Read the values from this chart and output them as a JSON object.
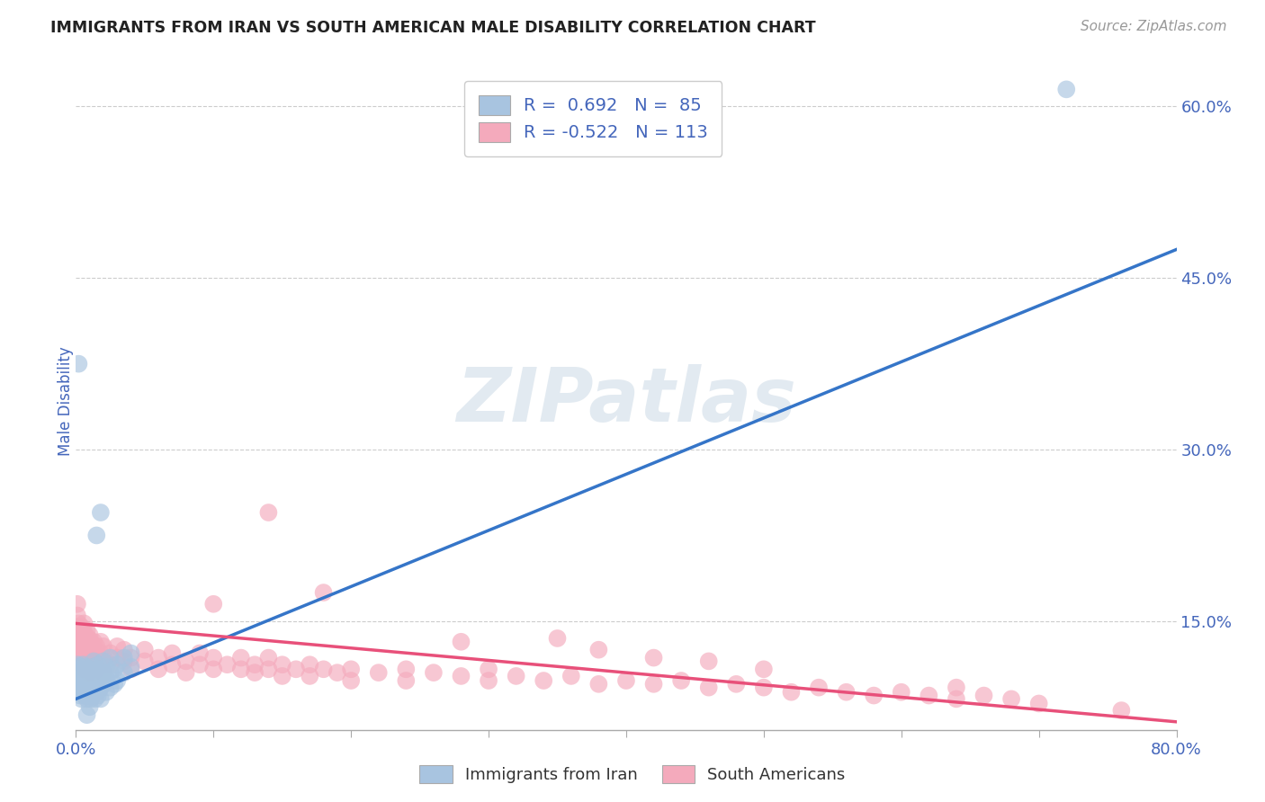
{
  "title": "IMMIGRANTS FROM IRAN VS SOUTH AMERICAN MALE DISABILITY CORRELATION CHART",
  "source": "Source: ZipAtlas.com",
  "ylabel": "Male Disability",
  "x_min": 0.0,
  "x_max": 0.8,
  "y_min": 0.055,
  "y_max": 0.63,
  "y_ticks_right": [
    0.15,
    0.3,
    0.45,
    0.6
  ],
  "y_tick_labels_right": [
    "15.0%",
    "30.0%",
    "45.0%",
    "60.0%"
  ],
  "blue_R": 0.692,
  "blue_N": 85,
  "pink_R": -0.522,
  "pink_N": 113,
  "blue_color": "#a8c4e0",
  "blue_line_color": "#3575c8",
  "pink_color": "#f4aabc",
  "pink_line_color": "#e8507a",
  "legend_label_blue": "Immigrants from Iran",
  "legend_label_pink": "South Americans",
  "watermark": "ZIPatlas",
  "background_color": "#ffffff",
  "title_color": "#222222",
  "axis_label_color": "#4466bb",
  "grid_color": "#cccccc",
  "blue_line_x0": 0.0,
  "blue_line_y0": 0.082,
  "blue_line_x1": 0.8,
  "blue_line_y1": 0.475,
  "pink_line_x0": 0.0,
  "pink_line_y0": 0.148,
  "pink_line_x1": 0.8,
  "pink_line_y1": 0.062,
  "blue_scatter": [
    [
      0.001,
      0.095
    ],
    [
      0.001,
      0.105
    ],
    [
      0.001,
      0.112
    ],
    [
      0.001,
      0.098
    ],
    [
      0.002,
      0.088
    ],
    [
      0.002,
      0.102
    ],
    [
      0.002,
      0.092
    ],
    [
      0.002,
      0.108
    ],
    [
      0.003,
      0.095
    ],
    [
      0.003,
      0.085
    ],
    [
      0.003,
      0.1
    ],
    [
      0.003,
      0.11
    ],
    [
      0.004,
      0.09
    ],
    [
      0.004,
      0.098
    ],
    [
      0.004,
      0.105
    ],
    [
      0.004,
      0.082
    ],
    [
      0.005,
      0.095
    ],
    [
      0.005,
      0.088
    ],
    [
      0.005,
      0.102
    ],
    [
      0.005,
      0.112
    ],
    [
      0.006,
      0.092
    ],
    [
      0.006,
      0.098
    ],
    [
      0.006,
      0.105
    ],
    [
      0.006,
      0.085
    ],
    [
      0.007,
      0.088
    ],
    [
      0.007,
      0.095
    ],
    [
      0.007,
      0.102
    ],
    [
      0.007,
      0.11
    ],
    [
      0.008,
      0.09
    ],
    [
      0.008,
      0.082
    ],
    [
      0.008,
      0.098
    ],
    [
      0.008,
      0.105
    ],
    [
      0.009,
      0.092
    ],
    [
      0.009,
      0.1
    ],
    [
      0.009,
      0.085
    ],
    [
      0.009,
      0.108
    ],
    [
      0.01,
      0.095
    ],
    [
      0.01,
      0.088
    ],
    [
      0.01,
      0.102
    ],
    [
      0.01,
      0.075
    ],
    [
      0.011,
      0.09
    ],
    [
      0.011,
      0.098
    ],
    [
      0.011,
      0.105
    ],
    [
      0.011,
      0.082
    ],
    [
      0.012,
      0.092
    ],
    [
      0.012,
      0.1
    ],
    [
      0.012,
      0.085
    ],
    [
      0.012,
      0.11
    ],
    [
      0.013,
      0.095
    ],
    [
      0.013,
      0.088
    ],
    [
      0.013,
      0.115
    ],
    [
      0.014,
      0.098
    ],
    [
      0.014,
      0.082
    ],
    [
      0.014,
      0.105
    ],
    [
      0.015,
      0.092
    ],
    [
      0.015,
      0.1
    ],
    [
      0.015,
      0.108
    ],
    [
      0.016,
      0.095
    ],
    [
      0.016,
      0.085
    ],
    [
      0.016,
      0.112
    ],
    [
      0.017,
      0.09
    ],
    [
      0.017,
      0.098
    ],
    [
      0.017,
      0.105
    ],
    [
      0.018,
      0.092
    ],
    [
      0.018,
      0.082
    ],
    [
      0.018,
      0.1
    ],
    [
      0.02,
      0.095
    ],
    [
      0.02,
      0.105
    ],
    [
      0.02,
      0.115
    ],
    [
      0.022,
      0.1
    ],
    [
      0.022,
      0.088
    ],
    [
      0.022,
      0.11
    ],
    [
      0.025,
      0.105
    ],
    [
      0.025,
      0.092
    ],
    [
      0.025,
      0.118
    ],
    [
      0.028,
      0.108
    ],
    [
      0.028,
      0.095
    ],
    [
      0.03,
      0.112
    ],
    [
      0.03,
      0.098
    ],
    [
      0.035,
      0.118
    ],
    [
      0.035,
      0.105
    ],
    [
      0.04,
      0.122
    ],
    [
      0.04,
      0.11
    ],
    [
      0.002,
      0.375
    ],
    [
      0.018,
      0.245
    ],
    [
      0.015,
      0.225
    ],
    [
      0.008,
      0.068
    ],
    [
      0.72,
      0.615
    ]
  ],
  "pink_scatter": [
    [
      0.001,
      0.13
    ],
    [
      0.001,
      0.115
    ],
    [
      0.001,
      0.145
    ],
    [
      0.001,
      0.155
    ],
    [
      0.002,
      0.125
    ],
    [
      0.002,
      0.138
    ],
    [
      0.002,
      0.148
    ],
    [
      0.002,
      0.12
    ],
    [
      0.003,
      0.132
    ],
    [
      0.003,
      0.118
    ],
    [
      0.003,
      0.142
    ],
    [
      0.003,
      0.108
    ],
    [
      0.004,
      0.128
    ],
    [
      0.004,
      0.138
    ],
    [
      0.004,
      0.115
    ],
    [
      0.004,
      0.145
    ],
    [
      0.005,
      0.122
    ],
    [
      0.005,
      0.132
    ],
    [
      0.005,
      0.142
    ],
    [
      0.005,
      0.112
    ],
    [
      0.006,
      0.125
    ],
    [
      0.006,
      0.135
    ],
    [
      0.006,
      0.115
    ],
    [
      0.006,
      0.148
    ],
    [
      0.007,
      0.118
    ],
    [
      0.007,
      0.128
    ],
    [
      0.007,
      0.138
    ],
    [
      0.007,
      0.108
    ],
    [
      0.008,
      0.122
    ],
    [
      0.008,
      0.132
    ],
    [
      0.008,
      0.112
    ],
    [
      0.008,
      0.142
    ],
    [
      0.009,
      0.125
    ],
    [
      0.009,
      0.115
    ],
    [
      0.009,
      0.135
    ],
    [
      0.009,
      0.105
    ],
    [
      0.01,
      0.118
    ],
    [
      0.01,
      0.128
    ],
    [
      0.01,
      0.138
    ],
    [
      0.01,
      0.108
    ],
    [
      0.011,
      0.122
    ],
    [
      0.011,
      0.112
    ],
    [
      0.011,
      0.132
    ],
    [
      0.012,
      0.118
    ],
    [
      0.012,
      0.128
    ],
    [
      0.012,
      0.105
    ],
    [
      0.013,
      0.122
    ],
    [
      0.013,
      0.115
    ],
    [
      0.013,
      0.132
    ],
    [
      0.015,
      0.118
    ],
    [
      0.015,
      0.128
    ],
    [
      0.015,
      0.108
    ],
    [
      0.018,
      0.122
    ],
    [
      0.018,
      0.112
    ],
    [
      0.018,
      0.132
    ],
    [
      0.02,
      0.118
    ],
    [
      0.02,
      0.128
    ],
    [
      0.02,
      0.105
    ],
    [
      0.025,
      0.122
    ],
    [
      0.025,
      0.112
    ],
    [
      0.03,
      0.118
    ],
    [
      0.03,
      0.128
    ],
    [
      0.035,
      0.115
    ],
    [
      0.035,
      0.125
    ],
    [
      0.04,
      0.118
    ],
    [
      0.04,
      0.108
    ],
    [
      0.05,
      0.115
    ],
    [
      0.05,
      0.125
    ],
    [
      0.06,
      0.118
    ],
    [
      0.06,
      0.108
    ],
    [
      0.07,
      0.112
    ],
    [
      0.07,
      0.122
    ],
    [
      0.08,
      0.115
    ],
    [
      0.08,
      0.105
    ],
    [
      0.09,
      0.112
    ],
    [
      0.09,
      0.122
    ],
    [
      0.1,
      0.108
    ],
    [
      0.1,
      0.118
    ],
    [
      0.11,
      0.112
    ],
    [
      0.12,
      0.108
    ],
    [
      0.12,
      0.118
    ],
    [
      0.13,
      0.112
    ],
    [
      0.13,
      0.105
    ],
    [
      0.14,
      0.108
    ],
    [
      0.14,
      0.118
    ],
    [
      0.15,
      0.112
    ],
    [
      0.15,
      0.102
    ],
    [
      0.16,
      0.108
    ],
    [
      0.17,
      0.112
    ],
    [
      0.17,
      0.102
    ],
    [
      0.18,
      0.108
    ],
    [
      0.19,
      0.105
    ],
    [
      0.2,
      0.108
    ],
    [
      0.2,
      0.098
    ],
    [
      0.22,
      0.105
    ],
    [
      0.24,
      0.108
    ],
    [
      0.24,
      0.098
    ],
    [
      0.26,
      0.105
    ],
    [
      0.28,
      0.102
    ],
    [
      0.3,
      0.098
    ],
    [
      0.3,
      0.108
    ],
    [
      0.32,
      0.102
    ],
    [
      0.34,
      0.098
    ],
    [
      0.36,
      0.102
    ],
    [
      0.38,
      0.095
    ],
    [
      0.4,
      0.098
    ],
    [
      0.42,
      0.095
    ],
    [
      0.44,
      0.098
    ],
    [
      0.46,
      0.092
    ],
    [
      0.48,
      0.095
    ],
    [
      0.5,
      0.092
    ],
    [
      0.52,
      0.088
    ],
    [
      0.54,
      0.092
    ],
    [
      0.56,
      0.088
    ],
    [
      0.58,
      0.085
    ],
    [
      0.6,
      0.088
    ],
    [
      0.62,
      0.085
    ],
    [
      0.64,
      0.082
    ],
    [
      0.66,
      0.085
    ],
    [
      0.68,
      0.082
    ],
    [
      0.7,
      0.078
    ],
    [
      0.001,
      0.165
    ],
    [
      0.14,
      0.245
    ],
    [
      0.1,
      0.165
    ],
    [
      0.18,
      0.175
    ],
    [
      0.35,
      0.135
    ],
    [
      0.38,
      0.125
    ],
    [
      0.28,
      0.132
    ],
    [
      0.42,
      0.118
    ],
    [
      0.46,
      0.115
    ],
    [
      0.5,
      0.108
    ],
    [
      0.64,
      0.092
    ],
    [
      0.76,
      0.072
    ]
  ]
}
